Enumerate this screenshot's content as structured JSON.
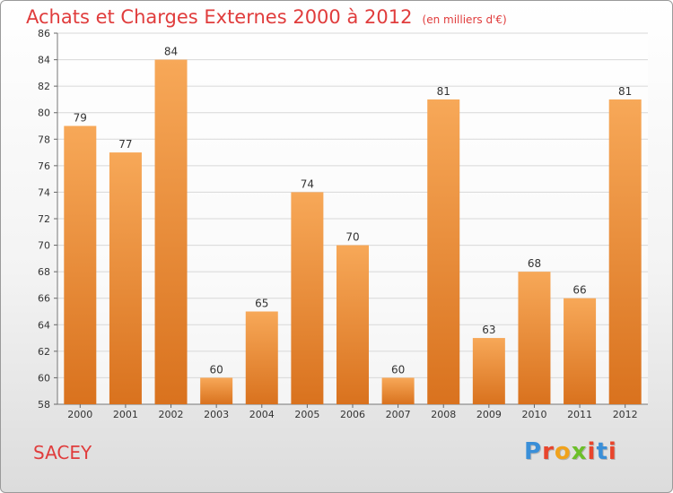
{
  "title": "Achats et Charges Externes 2000 à 2012",
  "unit": "(en milliers d'€)",
  "commune": "SACEY",
  "logo": {
    "text": "Proxiti",
    "colors": [
      "#3a8fd8",
      "#e8452c",
      "#f0a21c",
      "#6cbf2a",
      "#e8452c",
      "#3a8fd8",
      "#e8452c"
    ]
  },
  "colors": {
    "bar_top": "#f7a858",
    "bar_bottom": "#d9721e",
    "title": "#e03c3c"
  },
  "chart_data": {
    "type": "bar",
    "categories": [
      "2000",
      "2001",
      "2002",
      "2003",
      "2004",
      "2005",
      "2006",
      "2007",
      "2008",
      "2009",
      "2010",
      "2011",
      "2012"
    ],
    "values": [
      79,
      77,
      84,
      60,
      65,
      74,
      70,
      60,
      81,
      63,
      68,
      66,
      81
    ],
    "title": "Achats et Charges Externes 2000 à 2012",
    "ylim": [
      58,
      86
    ],
    "yticks": [
      58,
      60,
      62,
      64,
      66,
      68,
      70,
      72,
      74,
      76,
      78,
      80,
      82,
      84,
      86
    ],
    "grid": true
  }
}
